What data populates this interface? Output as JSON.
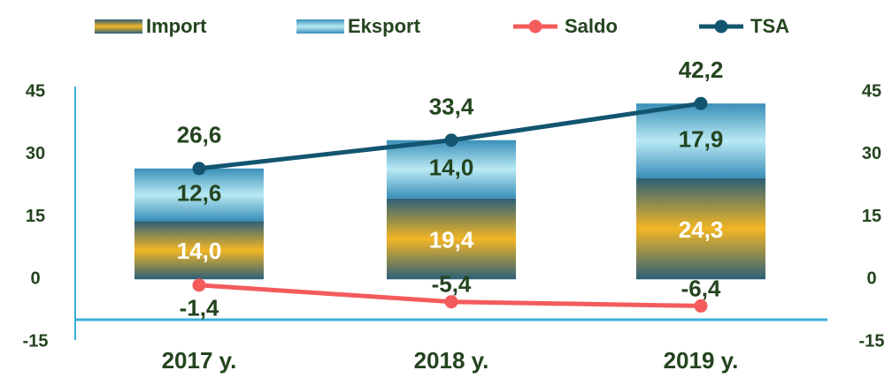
{
  "chart_data": {
    "type": "bar",
    "stacked": true,
    "categories": [
      "2017 y.",
      "2018 y.",
      "2019 y."
    ],
    "series": [
      {
        "name": "Import",
        "type": "bar",
        "color": "#f2b625",
        "values": [
          14.0,
          19.4,
          24.3
        ],
        "value_labels": [
          "14,0",
          "19,4",
          "24,3"
        ]
      },
      {
        "name": "Eksport",
        "type": "bar",
        "color": "#b9e9f4",
        "values": [
          12.6,
          14.0,
          17.9
        ],
        "value_labels": [
          "12,6",
          "14,0",
          "17,9"
        ]
      },
      {
        "name": "Saldo",
        "type": "line",
        "color": "#f45b5b",
        "values": [
          -1.4,
          -5.4,
          -6.4
        ],
        "value_labels": [
          "-1,4",
          "-5,4",
          "-6,4"
        ]
      },
      {
        "name": "TSA",
        "type": "line",
        "color": "#135570",
        "values": [
          26.6,
          33.4,
          42.2
        ],
        "value_labels": [
          "26,6",
          "33,4",
          "42,2"
        ]
      }
    ],
    "ylim": [
      -15,
      45
    ],
    "yticks": [
      -15,
      0,
      15,
      30,
      45
    ],
    "y2lim": [
      -15,
      45
    ],
    "y2ticks": [
      -15,
      0,
      15,
      30,
      45
    ],
    "legend": "top"
  }
}
